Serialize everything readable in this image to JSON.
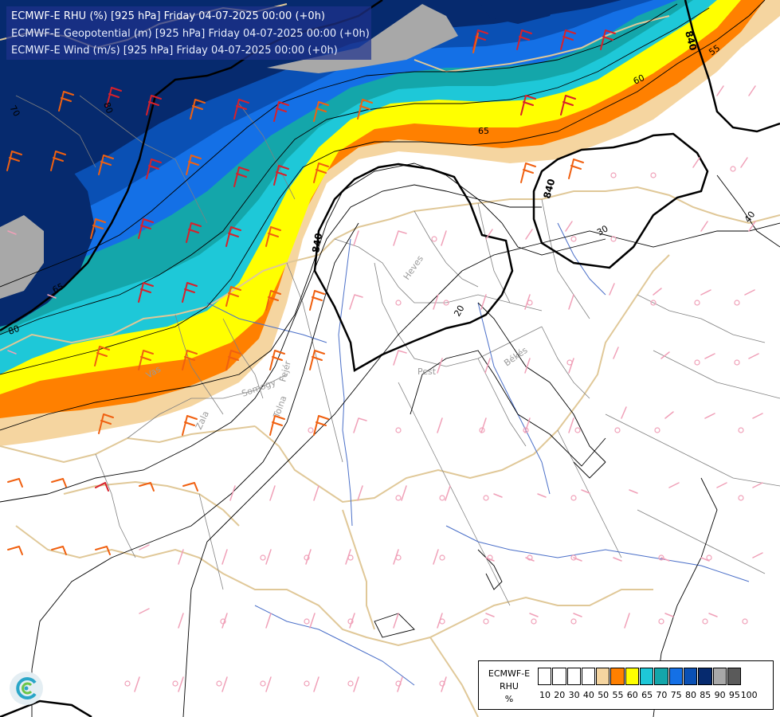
{
  "header": {
    "line1": "ECMWF-E RHU (%) [925 hPa] Friday 04-07-2025 00:00 (+0h)",
    "line2": "ECMWF-E Geopotential (m) [925 hPa] Friday 04-07-2025 00:00 (+0h)",
    "line3": "ECMWF-E Wind (m/s) [925 hPa] Friday 04-07-2025 00:00 (+0h)"
  },
  "legend": {
    "title_lines": [
      "ECMWF-E",
      "RHU",
      "%"
    ],
    "tick_labels": [
      "10",
      "20",
      "30",
      "40",
      "50",
      "55",
      "60",
      "65",
      "70",
      "75",
      "80",
      "85",
      "90",
      "95",
      "100"
    ],
    "colors": [
      "#ffffff",
      "#ffffff",
      "#ffffff",
      "#ffffff",
      "#f5d5a0",
      "#ff8000",
      "#ffff00",
      "#1ec8d8",
      "#14a6aa",
      "#1470e6",
      "#0a50b4",
      "#062a6e",
      "#a8a8a8",
      "#5a5a5a"
    ]
  },
  "map": {
    "contour_labels": [
      "840",
      "840",
      "840",
      "55",
      "60",
      "65",
      "70",
      "80",
      "80",
      "65",
      "40",
      "30",
      "20"
    ],
    "place_labels": [
      "Heves",
      "Pest",
      "Békés",
      "Fejér",
      "Somogy",
      "Vas",
      "Zala",
      "Tolna"
    ]
  }
}
